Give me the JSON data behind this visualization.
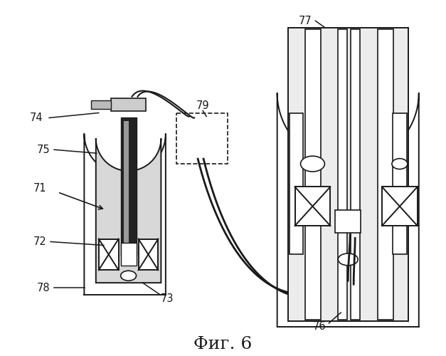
{
  "bg_color": "#ffffff",
  "line_color": "#1a1a1a",
  "title": "Фиг. 6",
  "title_fontsize": 18,
  "title_font": "DejaVu Serif",
  "fig_width": 6.27,
  "fig_height": 5.0,
  "dpi": 100
}
